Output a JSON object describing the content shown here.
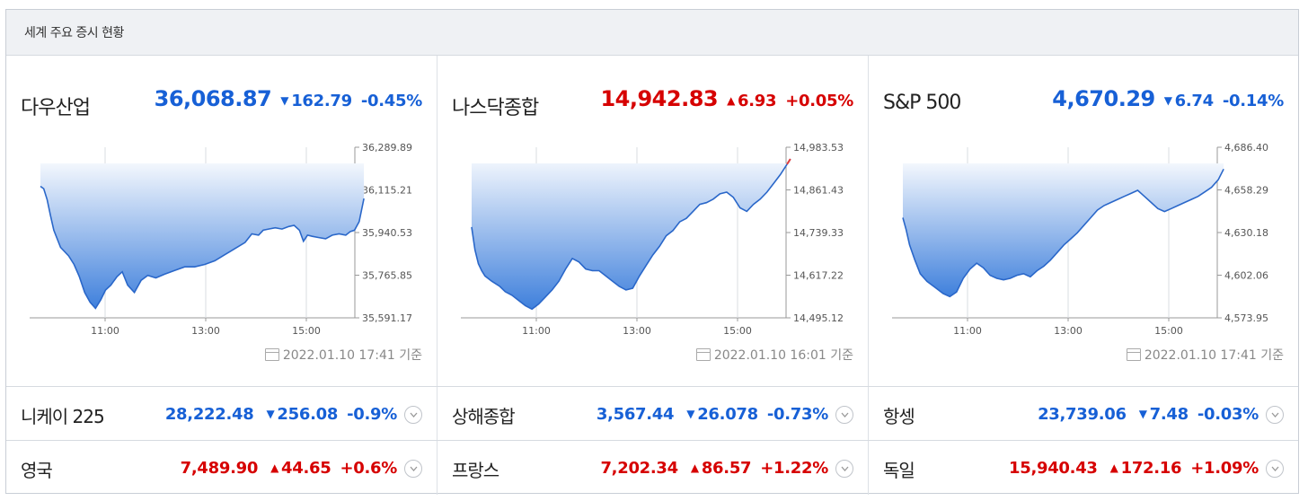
{
  "header": {
    "title": "세계 주요 증시 현황"
  },
  "colors": {
    "down": "#1760d6",
    "up": "#d60000"
  },
  "panels": [
    {
      "name": "다우산업",
      "value": "36,068.87",
      "direction": "down",
      "arrow": "▼",
      "change": "162.79",
      "percent": "-0.45%",
      "timestamp": "2022.01.10 17:41 기준",
      "chart_data": {
        "type": "area",
        "x_ticks": [
          "11:00",
          "13:00",
          "15:00"
        ],
        "y_ticks": [
          "36,289.89",
          "36,115.21",
          "35,940.53",
          "35,765.85",
          "35,591.17"
        ],
        "ylim": [
          35591.17,
          36289.89
        ],
        "x": [
          0.0,
          0.05,
          0.1,
          0.15,
          0.2,
          0.3,
          0.42,
          0.5,
          0.58,
          0.66,
          0.74,
          0.82,
          0.9,
          0.97,
          1.05,
          1.14,
          1.22,
          1.3,
          1.4,
          1.5,
          1.6,
          1.72,
          1.85,
          2.0,
          2.15,
          2.3,
          2.45,
          2.6,
          2.75,
          2.9,
          3.05,
          3.15,
          3.25,
          3.32,
          3.4,
          3.5,
          3.6,
          3.7,
          3.78,
          3.86,
          3.92,
          3.98,
          4.05,
          4.15,
          4.25,
          4.35,
          4.45,
          4.55,
          4.62,
          4.68,
          4.75,
          4.82
        ],
        "values": [
          36130,
          36120,
          36075,
          36010,
          35950,
          35880,
          35845,
          35810,
          35760,
          35695,
          35655,
          35630,
          35665,
          35705,
          35725,
          35760,
          35780,
          35725,
          35695,
          35745,
          35765,
          35755,
          35770,
          35785,
          35800,
          35800,
          35810,
          35825,
          35850,
          35875,
          35900,
          35935,
          35930,
          35950,
          35955,
          35960,
          35955,
          35965,
          35970,
          35950,
          35905,
          35930,
          35925,
          35920,
          35915,
          35930,
          35935,
          35930,
          35945,
          35950,
          35985,
          36080
        ]
      }
    },
    {
      "name": "나스닥종합",
      "value": "14,942.83",
      "direction": "up",
      "arrow": "▲",
      "change": "6.93",
      "percent": "+0.05%",
      "timestamp": "2022.01.10 16:01 기준",
      "chart_data": {
        "type": "area",
        "x_ticks": [
          "11:00",
          "13:00",
          "15:00"
        ],
        "y_ticks": [
          "14,983.53",
          "14,861.43",
          "14,739.33",
          "14,617.22",
          "14,495.12"
        ],
        "ylim": [
          14495.12,
          14983.53
        ],
        "x": [
          0.0,
          0.05,
          0.1,
          0.15,
          0.2,
          0.3,
          0.42,
          0.5,
          0.6,
          0.7,
          0.8,
          0.9,
          1.0,
          1.1,
          1.2,
          1.3,
          1.4,
          1.5,
          1.6,
          1.7,
          1.8,
          1.9,
          2.0,
          2.1,
          2.2,
          2.3,
          2.4,
          2.5,
          2.6,
          2.7,
          2.8,
          2.9,
          3.0,
          3.1,
          3.2,
          3.3,
          3.4,
          3.5,
          3.6,
          3.7,
          3.8,
          3.9,
          4.0,
          4.1,
          4.2,
          4.3,
          4.4,
          4.5,
          4.6,
          4.7,
          4.75
        ],
        "values": [
          14755,
          14690,
          14650,
          14630,
          14615,
          14600,
          14585,
          14570,
          14560,
          14545,
          14530,
          14520,
          14535,
          14555,
          14575,
          14600,
          14635,
          14665,
          14655,
          14635,
          14630,
          14630,
          14615,
          14600,
          14585,
          14575,
          14580,
          14615,
          14645,
          14675,
          14700,
          14730,
          14745,
          14770,
          14780,
          14800,
          14820,
          14825,
          14835,
          14850,
          14855,
          14840,
          14810,
          14800,
          14820,
          14835,
          14855,
          14880,
          14905,
          14935,
          14950
        ]
      }
    },
    {
      "name": "S&P 500",
      "value": "4,670.29",
      "direction": "down",
      "arrow": "▼",
      "change": "6.74",
      "percent": "-0.14%",
      "timestamp": "2022.01.10 17:41 기준",
      "chart_data": {
        "type": "area",
        "x_ticks": [
          "11:00",
          "13:00",
          "15:00"
        ],
        "y_ticks": [
          "4,686.40",
          "4,658.29",
          "4,630.18",
          "4,602.06",
          "4,573.95"
        ],
        "ylim": [
          4573.95,
          4686.4
        ],
        "x": [
          0.0,
          0.05,
          0.1,
          0.18,
          0.26,
          0.36,
          0.48,
          0.6,
          0.7,
          0.8,
          0.9,
          1.0,
          1.1,
          1.2,
          1.3,
          1.4,
          1.5,
          1.6,
          1.7,
          1.8,
          1.9,
          2.0,
          2.1,
          2.2,
          2.3,
          2.4,
          2.5,
          2.6,
          2.7,
          2.8,
          2.9,
          3.0,
          3.1,
          3.2,
          3.3,
          3.4,
          3.5,
          3.6,
          3.7,
          3.8,
          3.9,
          4.0,
          4.1,
          4.2,
          4.3,
          4.4,
          4.5,
          4.6,
          4.7,
          4.78
        ],
        "values": [
          4640,
          4632,
          4622,
          4612,
          4603,
          4598,
          4594,
          4590,
          4588,
          4591,
          4600,
          4606,
          4610,
          4607,
          4602,
          4600,
          4599,
          4600,
          4602,
          4603,
          4601,
          4605,
          4608,
          4612,
          4617,
          4622,
          4626,
          4630,
          4635,
          4640,
          4645,
          4648,
          4650,
          4652,
          4654,
          4656,
          4658,
          4654,
          4650,
          4646,
          4644,
          4646,
          4648,
          4650,
          4652,
          4654,
          4657,
          4660,
          4665,
          4672
        ]
      }
    }
  ],
  "rows": [
    [
      {
        "name": "니케이 225",
        "value": "28,222.48",
        "direction": "down",
        "arrow": "▼",
        "change": "256.08",
        "percent": "-0.9%"
      },
      {
        "name": "상해종합",
        "value": "3,567.44",
        "direction": "down",
        "arrow": "▼",
        "change": "26.078",
        "percent": "-0.73%"
      },
      {
        "name": "항셍",
        "value": "23,739.06",
        "direction": "down",
        "arrow": "▼",
        "change": "7.48",
        "percent": "-0.03%"
      }
    ],
    [
      {
        "name": "영국",
        "value": "7,489.90",
        "direction": "up",
        "arrow": "▲",
        "change": "44.65",
        "percent": "+0.6%"
      },
      {
        "name": "프랑스",
        "value": "7,202.34",
        "direction": "up",
        "arrow": "▲",
        "change": "86.57",
        "percent": "+1.22%"
      },
      {
        "name": "독일",
        "value": "15,940.43",
        "direction": "up",
        "arrow": "▲",
        "change": "172.16",
        "percent": "+1.09%"
      }
    ]
  ]
}
